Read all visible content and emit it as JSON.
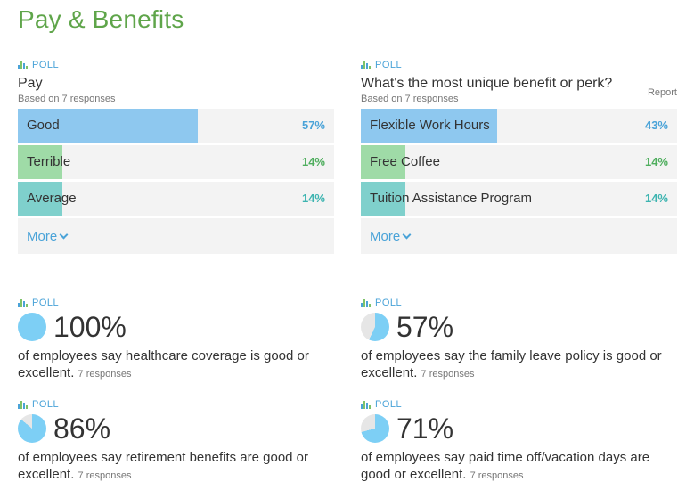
{
  "page": {
    "title": "Pay & Benefits"
  },
  "poll_label": "POLL",
  "polls": [
    {
      "question": "Pay",
      "based_on": "Based on 7 responses",
      "report": "",
      "options": [
        {
          "label": "Good",
          "percent": 57,
          "percent_text": "57%",
          "fill_color": "#8ec8ef",
          "pct_color": "#4aa3d8"
        },
        {
          "label": "Terrible",
          "percent": 14,
          "percent_text": "14%",
          "fill_color": "#9fdba7",
          "pct_color": "#4fae5e"
        },
        {
          "label": "Average",
          "percent": 14,
          "percent_text": "14%",
          "fill_color": "#7fd0cc",
          "pct_color": "#3db4b0"
        }
      ],
      "more_label": "More"
    },
    {
      "question": "What's the most unique benefit or perk?",
      "based_on": "Based on 7 responses",
      "report": "Report",
      "options": [
        {
          "label": "Flexible Work Hours",
          "percent": 43,
          "percent_text": "43%",
          "fill_color": "#8ec8ef",
          "pct_color": "#4aa3d8"
        },
        {
          "label": "Free Coffee",
          "percent": 14,
          "percent_text": "14%",
          "fill_color": "#9fdba7",
          "pct_color": "#4fae5e"
        },
        {
          "label": "Tuition Assistance Program",
          "percent": 14,
          "percent_text": "14%",
          "fill_color": "#7fd0cc",
          "pct_color": "#3db4b0"
        }
      ],
      "more_label": "More"
    }
  ],
  "stats": [
    {
      "percent": 100,
      "percent_text": "100%",
      "text": "of employees say healthcare coverage is good or excellent.",
      "responses": "7 responses"
    },
    {
      "percent": 57,
      "percent_text": "57%",
      "text": "of employees say the family leave policy is good or excellent.",
      "responses": "7 responses"
    },
    {
      "percent": 86,
      "percent_text": "86%",
      "text": "of employees say retirement benefits are good or excellent.",
      "responses": "7 responses"
    },
    {
      "percent": 71,
      "percent_text": "71%",
      "text": "of employees say paid time off/vacation days are good or excellent.",
      "responses": "7 responses"
    }
  ],
  "colors": {
    "pie_fill": "#7dcff5",
    "pie_bg": "#e6e6e6",
    "accent": "#4aa3d8",
    "title": "#5fa54a"
  }
}
